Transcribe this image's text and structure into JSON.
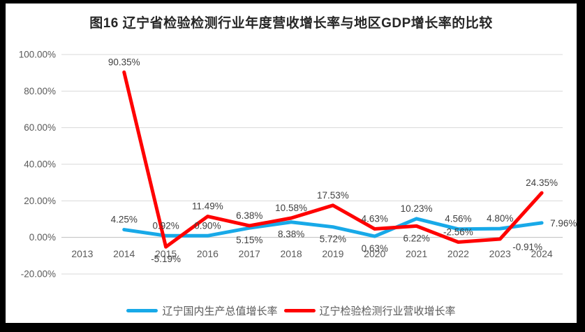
{
  "window": {
    "background": "#000000",
    "panel_background": "#ffffff"
  },
  "chart_data": {
    "type": "line",
    "title": "图16 辽宁省检验检测行业年度营收增长率与地区GDP增长率的比较",
    "categories": [
      "2013",
      "2014",
      "2015",
      "2016",
      "2017",
      "2018",
      "2019",
      "2020",
      "2021",
      "2022",
      "2023",
      "2024"
    ],
    "series": [
      {
        "key": "gdp-growth",
        "name": "辽宁国内生产总值增长率",
        "color": "#18A9E8",
        "values": [
          null,
          4.25,
          0.92,
          0.9,
          5.15,
          8.38,
          5.72,
          0.63,
          10.23,
          4.56,
          4.8,
          7.96
        ],
        "labels": [
          null,
          "4.25%",
          "0.92%",
          "0.90%",
          "5.15%",
          "8.38%",
          "5.72%",
          "0.63%",
          "10.23%",
          "4.56%",
          "4.80%",
          "7.96%"
        ],
        "label_sides": [
          null,
          "above",
          "above",
          "above",
          "below",
          "below",
          "below",
          "below",
          "above",
          "above",
          "above",
          "right"
        ]
      },
      {
        "key": "revenue-growth",
        "name": "辽宁检验检测行业营收增长率",
        "color": "#FF0000",
        "values": [
          null,
          90.35,
          -5.19,
          11.49,
          6.38,
          10.58,
          17.53,
          4.63,
          6.22,
          -2.56,
          -0.91,
          24.35
        ],
        "labels": [
          null,
          "90.35%",
          "-5.19%",
          "11.49%",
          "6.38%",
          "10.58%",
          "17.53%",
          "4.63%",
          "6.22%",
          "-2.56%",
          "-0.91%",
          "24.35%"
        ],
        "label_sides": [
          null,
          "above",
          "below",
          "above",
          "above",
          "above",
          "above",
          "above",
          "below",
          "above",
          "below-right",
          "above"
        ]
      }
    ],
    "y_axis": {
      "min": -20,
      "max": 100,
      "step": 20,
      "tick_labels": [
        "100.00%",
        "80.00%",
        "60.00%",
        "40.00%",
        "20.00%",
        "0.00%",
        "-20.00%"
      ]
    },
    "x_axis": {
      "labels": [
        "2013",
        "2014",
        "2015",
        "2016",
        "2017",
        "2018",
        "2019",
        "2020",
        "2021",
        "2022",
        "2023",
        "2024"
      ]
    },
    "grid": true,
    "legend_position": "bottom",
    "line_width": 5,
    "colors": {
      "gridline": "#D9D9D9",
      "zero_line": "#BFBFBF",
      "axis_text": "#595959",
      "data_label": "#404040",
      "title_text": "#262626"
    }
  }
}
